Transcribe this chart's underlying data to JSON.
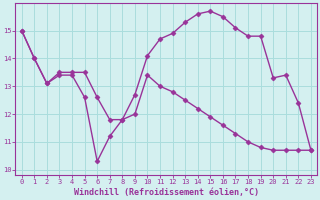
{
  "line1_x": [
    0,
    1,
    2,
    3,
    4,
    5,
    6,
    7,
    8,
    9,
    10,
    11,
    12,
    13,
    14,
    15,
    16,
    17,
    18,
    19,
    20,
    21,
    22,
    23
  ],
  "line1_y": [
    15.0,
    14.0,
    13.1,
    13.5,
    13.5,
    13.5,
    12.6,
    11.8,
    11.8,
    12.0,
    13.4,
    13.0,
    12.8,
    12.5,
    12.2,
    11.9,
    11.6,
    11.3,
    11.0,
    10.8,
    10.7,
    10.7,
    10.7,
    10.7
  ],
  "line2_x": [
    0,
    1,
    2,
    3,
    4,
    5,
    6,
    7,
    8,
    9,
    10,
    11,
    12,
    13,
    14,
    15,
    16,
    17,
    18,
    19,
    20,
    21,
    22,
    23
  ],
  "line2_y": [
    15.0,
    14.0,
    13.1,
    13.4,
    13.4,
    12.6,
    10.3,
    11.2,
    11.8,
    12.7,
    14.1,
    14.7,
    14.9,
    15.3,
    15.6,
    15.7,
    15.5,
    15.1,
    14.8,
    14.8,
    13.3,
    13.4,
    12.4,
    10.7
  ],
  "line_color": "#993399",
  "background_color": "#d4f0f0",
  "grid_color": "#aadddd",
  "axis_color": "#993399",
  "text_color": "#993399",
  "xlim": [
    -0.5,
    23.5
  ],
  "ylim": [
    9.8,
    16.0
  ],
  "yticks": [
    10,
    11,
    12,
    13,
    14,
    15
  ],
  "xticks": [
    0,
    1,
    2,
    3,
    4,
    5,
    6,
    7,
    8,
    9,
    10,
    11,
    12,
    13,
    14,
    15,
    16,
    17,
    18,
    19,
    20,
    21,
    22,
    23
  ],
  "xlabel": "Windchill (Refroidissement éolien,°C)",
  "marker": "D",
  "markersize": 2.5,
  "linewidth": 1.0,
  "tick_fontsize": 5.0,
  "label_fontsize": 6.0
}
